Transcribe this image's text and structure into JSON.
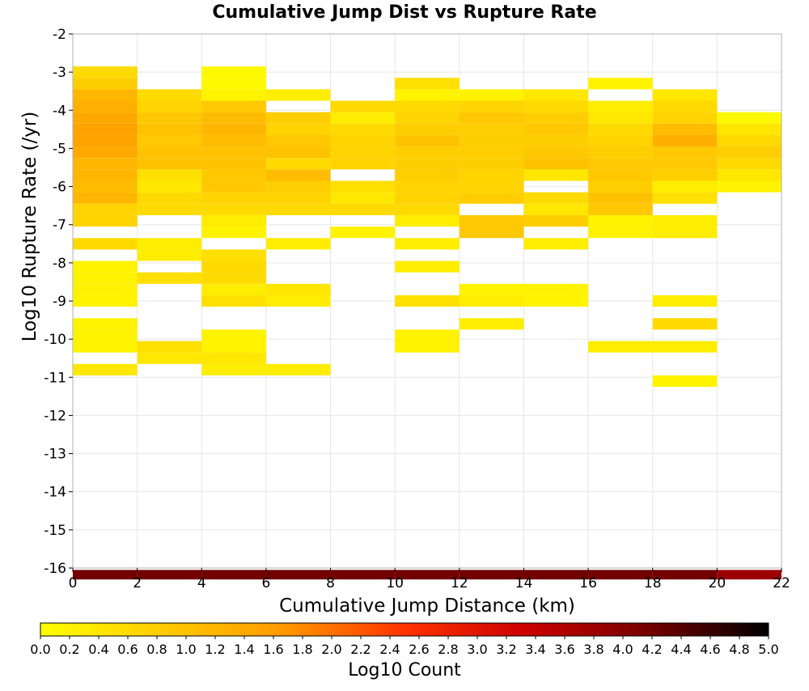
{
  "chart_data": {
    "type": "heatmap",
    "title": "Cumulative Jump Dist vs Rupture Rate",
    "xlabel": "Cumulative Jump Distance (km)",
    "ylabel": "Log10 Rupture Rate (/yr)",
    "xlim": [
      0,
      22
    ],
    "ylim": [
      -16,
      -2
    ],
    "x_ticks": [
      "0",
      "2",
      "4",
      "6",
      "8",
      "10",
      "12",
      "14",
      "16",
      "18",
      "20",
      "22"
    ],
    "y_ticks": [
      "-2",
      "-3",
      "-4",
      "-5",
      "-6",
      "-7",
      "-8",
      "-9",
      "-10",
      "-11",
      "-12",
      "-13",
      "-14",
      "-15",
      "-16"
    ],
    "x_bin_width": 2,
    "y_bin_height": 0.3,
    "grid": true,
    "colorbar": {
      "label": "Log10 Count",
      "min": 0.0,
      "max": 5.0,
      "ticks": [
        "0.0",
        "0.2",
        "0.4",
        "0.6",
        "0.8",
        "1.0",
        "1.2",
        "1.4",
        "1.6",
        "1.8",
        "2.0",
        "2.2",
        "2.4",
        "2.6",
        "2.8",
        "3.0",
        "3.2",
        "3.4",
        "3.6",
        "3.8",
        "4.0",
        "4.2",
        "4.4",
        "4.6",
        "4.8",
        "5.0"
      ],
      "colors": [
        "#ffff00",
        "#ffcc00",
        "#ff9900",
        "#ff3300",
        "#cc0000",
        "#770000",
        "#000000"
      ]
    },
    "rows": [
      {
        "y": -3.0,
        "values": [
          0.6,
          null,
          0.1,
          null,
          null,
          null,
          null,
          null,
          null,
          null,
          null
        ]
      },
      {
        "y": -3.3,
        "values": [
          0.8,
          null,
          0.1,
          null,
          null,
          0.5,
          null,
          null,
          0.2,
          null,
          null
        ]
      },
      {
        "y": -3.6,
        "values": [
          1.2,
          0.6,
          0.2,
          0.3,
          null,
          0.2,
          0.2,
          0.4,
          null,
          0.4,
          null
        ]
      },
      {
        "y": -3.9,
        "values": [
          1.3,
          0.7,
          0.9,
          null,
          0.6,
          0.6,
          0.7,
          0.6,
          0.3,
          0.6,
          null
        ]
      },
      {
        "y": -4.2,
        "values": [
          1.4,
          0.9,
          1.1,
          0.8,
          0.3,
          0.7,
          0.9,
          0.8,
          0.4,
          0.7,
          0.1
        ]
      },
      {
        "y": -4.5,
        "values": [
          1.5,
          1.0,
          1.2,
          0.7,
          0.6,
          0.8,
          0.8,
          0.9,
          0.6,
          1.1,
          0.4
        ]
      },
      {
        "y": -4.8,
        "values": [
          1.5,
          0.9,
          1.1,
          0.9,
          0.7,
          1.0,
          0.8,
          0.8,
          0.7,
          1.3,
          0.6
        ]
      },
      {
        "y": -5.1,
        "values": [
          1.4,
          1.0,
          1.0,
          1.0,
          0.7,
          0.8,
          0.8,
          0.9,
          0.8,
          0.9,
          0.8
        ]
      },
      {
        "y": -5.4,
        "values": [
          1.2,
          1.0,
          1.0,
          0.6,
          0.7,
          0.8,
          0.8,
          1.0,
          0.9,
          0.9,
          0.6
        ]
      },
      {
        "y": -5.7,
        "values": [
          1.2,
          0.5,
          0.9,
          1.1,
          null,
          0.8,
          0.7,
          0.4,
          0.9,
          0.8,
          0.4
        ]
      },
      {
        "y": -6.0,
        "values": [
          1.1,
          0.4,
          0.9,
          0.8,
          0.5,
          0.7,
          0.7,
          null,
          0.8,
          0.3,
          0.2
        ]
      },
      {
        "y": -6.3,
        "values": [
          1.2,
          0.6,
          0.7,
          0.7,
          0.4,
          0.7,
          0.8,
          0.6,
          1.0,
          0.5,
          null
        ]
      },
      {
        "y": -6.6,
        "values": [
          0.7,
          0.6,
          0.6,
          0.6,
          0.6,
          0.6,
          null,
          0.4,
          0.9,
          null,
          null
        ]
      },
      {
        "y": -6.9,
        "values": [
          0.7,
          null,
          0.3,
          null,
          null,
          0.3,
          0.9,
          0.8,
          0.2,
          0.3,
          null
        ]
      },
      {
        "y": -7.2,
        "values": [
          null,
          null,
          0.2,
          null,
          0.2,
          null,
          0.9,
          null,
          0.2,
          0.3,
          null
        ]
      },
      {
        "y": -7.5,
        "values": [
          0.6,
          0.3,
          null,
          0.3,
          null,
          0.3,
          null,
          0.3,
          null,
          null,
          null
        ]
      },
      {
        "y": -7.8,
        "values": [
          null,
          0.3,
          0.5,
          null,
          null,
          null,
          null,
          null,
          null,
          null,
          null
        ]
      },
      {
        "y": -8.1,
        "values": [
          0.2,
          null,
          0.6,
          null,
          null,
          0.3,
          null,
          null,
          null,
          null,
          null
        ]
      },
      {
        "y": -8.4,
        "values": [
          0.2,
          0.5,
          0.6,
          null,
          null,
          null,
          null,
          null,
          null,
          null,
          null
        ]
      },
      {
        "y": -8.7,
        "values": [
          0.2,
          null,
          0.3,
          0.4,
          null,
          null,
          0.2,
          0.2,
          null,
          null,
          null
        ]
      },
      {
        "y": -9.0,
        "values": [
          0.2,
          null,
          0.5,
          0.3,
          null,
          0.5,
          0.3,
          0.2,
          null,
          0.3,
          null
        ]
      },
      {
        "y": -9.3,
        "values": [
          null,
          null,
          null,
          null,
          null,
          null,
          null,
          null,
          null,
          null,
          null
        ]
      },
      {
        "y": -9.6,
        "values": [
          0.2,
          null,
          null,
          null,
          null,
          null,
          0.3,
          null,
          null,
          0.6,
          null
        ]
      },
      {
        "y": -9.9,
        "values": [
          0.2,
          null,
          0.2,
          null,
          null,
          0.2,
          null,
          null,
          null,
          null,
          null
        ]
      },
      {
        "y": -10.2,
        "values": [
          0.2,
          0.5,
          0.2,
          null,
          null,
          0.2,
          null,
          null,
          0.3,
          0.3,
          null
        ]
      },
      {
        "y": -10.5,
        "values": [
          null,
          0.4,
          0.4,
          null,
          null,
          null,
          null,
          null,
          null,
          null,
          null
        ]
      },
      {
        "y": -10.8,
        "values": [
          0.4,
          null,
          0.3,
          0.3,
          null,
          null,
          null,
          null,
          null,
          null,
          null
        ]
      },
      {
        "y": -11.1,
        "values": [
          null,
          null,
          null,
          null,
          null,
          null,
          null,
          null,
          null,
          0.2,
          null
        ]
      },
      {
        "y": -16.2,
        "values": [
          4.2,
          4.2,
          4.2,
          4.2,
          4.2,
          4.2,
          4.2,
          4.2,
          4.2,
          4.2,
          3.8
        ]
      }
    ]
  }
}
